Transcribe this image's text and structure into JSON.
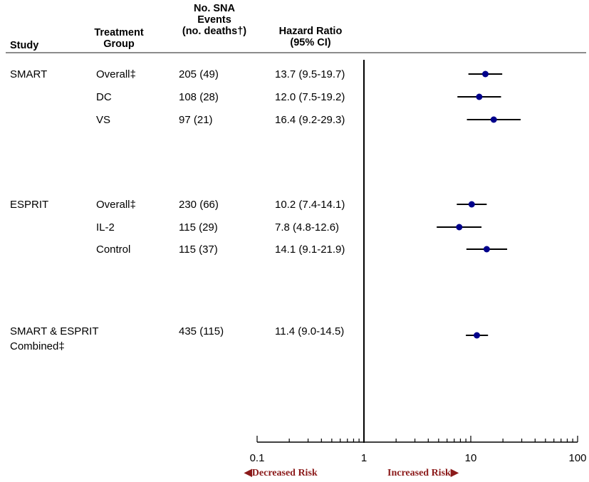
{
  "header": {
    "study": "Study",
    "treatment_group": [
      "Treatment",
      "Group"
    ],
    "sna_events": [
      "No. SNA",
      "Events",
      "(no. deaths†)"
    ],
    "hazard_ratio": [
      "Hazard Ratio",
      "(95% CI)"
    ]
  },
  "rows": [
    {
      "study": "SMART",
      "group": "Overall‡",
      "events": "205 (49)",
      "hr_text": "13.7 (9.5-19.7)"
    },
    {
      "study": "",
      "group": "DC",
      "events": "108 (28)",
      "hr_text": "12.0 (7.5-19.2)"
    },
    {
      "study": "",
      "group": "VS",
      "events": "97 (21)",
      "hr_text": "16.4 (9.2-29.3)"
    },
    {
      "study": "ESPRIT",
      "group": "Overall‡",
      "events": "230 (66)",
      "hr_text": "10.2 (7.4-14.1)"
    },
    {
      "study": "",
      "group": "IL-2",
      "events": "115 (29)",
      "hr_text": "7.8 (4.8-12.6)"
    },
    {
      "study": "",
      "group": "Control",
      "events": "115 (37)",
      "hr_text": "14.1 (9.1-21.9)"
    },
    {
      "study": "SMART & ESPRIT",
      "study_line2": "Combined‡",
      "group": "",
      "events": "435 (115)",
      "hr_text": "11.4 (9.0-14.5)"
    }
  ],
  "axis": {
    "tick_labels": [
      "0.1",
      "1",
      "10",
      "100"
    ],
    "decreased_label": "Decreased Risk",
    "increased_label": "Increased Risk"
  },
  "colors": {
    "point": "#00008b",
    "ci_line": "#000000",
    "risk_label": "#8b1a1a",
    "header_rule": "#8c8c8c"
  },
  "chart_data": {
    "type": "scatter",
    "scale": "log",
    "xlim": [
      0.1,
      100
    ],
    "reference_line": 1,
    "series": [
      {
        "label": "SMART Overall‡",
        "hr": 13.7,
        "lo": 9.5,
        "hi": 19.7
      },
      {
        "label": "SMART DC",
        "hr": 12.0,
        "lo": 7.5,
        "hi": 19.2
      },
      {
        "label": "SMART VS",
        "hr": 16.4,
        "lo": 9.2,
        "hi": 29.3
      },
      {
        "label": "ESPRIT Overall‡",
        "hr": 10.2,
        "lo": 7.4,
        "hi": 14.1
      },
      {
        "label": "ESPRIT IL-2",
        "hr": 7.8,
        "lo": 4.8,
        "hi": 12.6
      },
      {
        "label": "ESPRIT Control",
        "hr": 14.1,
        "lo": 9.1,
        "hi": 21.9
      },
      {
        "label": "SMART & ESPRIT Combined‡",
        "hr": 11.4,
        "lo": 9.0,
        "hi": 14.5
      }
    ]
  }
}
